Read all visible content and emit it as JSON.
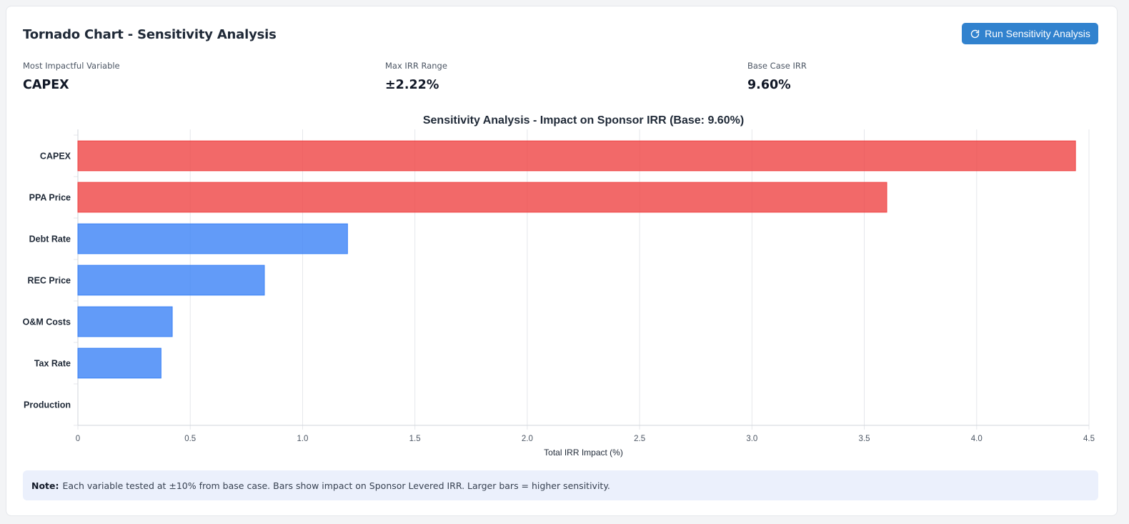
{
  "header": {
    "title": "Tornado Chart - Sensitivity Analysis",
    "run_button_label": "Run Sensitivity Analysis"
  },
  "metrics": [
    {
      "label": "Most Impactful Variable",
      "value": "CAPEX"
    },
    {
      "label": "Max IRR Range",
      "value": "±2.22%"
    },
    {
      "label": "Base Case IRR",
      "value": "9.60%"
    }
  ],
  "colors": {
    "high": "#ef4444",
    "low": "#3b82f6",
    "accent": "#3182ce"
  },
  "chart_data": {
    "type": "bar",
    "orientation": "horizontal",
    "title": "Sensitivity Analysis - Impact on Sponsor IRR (Base: 9.60%)",
    "xlabel": "Total IRR Impact (%)",
    "ylabel": "",
    "xlim": [
      0,
      4.5
    ],
    "xticks": [
      "0",
      "0.5",
      "1.0",
      "1.5",
      "2.0",
      "2.5",
      "3.0",
      "3.5",
      "4.0",
      "4.5"
    ],
    "grid": true,
    "categories": [
      "CAPEX",
      "PPA Price",
      "Debt Rate",
      "REC Price",
      "O&M Costs",
      "Tax Rate",
      "Production"
    ],
    "values": [
      4.44,
      3.6,
      1.2,
      0.83,
      0.42,
      0.37,
      0
    ],
    "bar_colors": [
      "high",
      "high",
      "low",
      "low",
      "low",
      "low",
      "low"
    ]
  },
  "note": {
    "label": "Note:",
    "text": "Each variable tested at ±10% from base case. Bars show impact on Sponsor Levered IRR. Larger bars = higher sensitivity."
  }
}
